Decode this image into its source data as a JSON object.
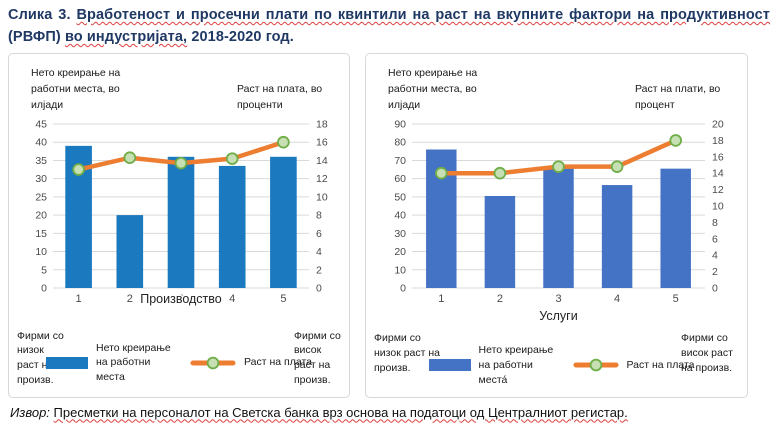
{
  "title": {
    "seg1": "Слика 3.",
    "seg2": "Вработеност и просечни плати по квинтили на раст на вкупните фактори на продуктивност",
    "seg3": "(РВФП)",
    "seg4": "во индустријата,",
    "seg5": "2018-2020 год."
  },
  "colors": {
    "title_navy": "#1F3864",
    "spellcheck_red": "#E04040",
    "grid": "#D9D9D9",
    "tick_text": "#4A4A4A",
    "bar_manufacturing": "#1B79BF",
    "bar_services": "#4472C4",
    "wage_line_orange": "#ED7D31",
    "marker_green_fill": "#C6E0B4",
    "marker_green_stroke": "#70AD47",
    "panel_border": "#D8D8D8"
  },
  "chart_data": [
    {
      "type": "bar+line",
      "categories": [
        "1",
        "2",
        "3",
        "4",
        "5"
      ],
      "series": [
        {
          "name": "Нето креирање на работни места",
          "type": "bar",
          "axis": "left",
          "values": [
            39,
            20,
            36,
            33.5,
            36
          ],
          "color": "#1B79BF"
        },
        {
          "name": "Раст на плата",
          "type": "line",
          "axis": "right",
          "values": [
            13,
            14.3,
            13.7,
            14.2,
            16
          ],
          "color": "#ED7D31",
          "marker_fill": "#C6E0B4",
          "marker_stroke": "#70AD47"
        }
      ],
      "y_left": {
        "label": "Нето креирање на работни места, во илјади",
        "min": 0,
        "max": 45,
        "step": 5
      },
      "y_right": {
        "label": "Раст на плата, во проценти",
        "min": 0,
        "max": 18,
        "step": 2
      },
      "x_title": "Производство",
      "x_title_inline": true,
      "annotation_left": "Фирми со низок раст на произв.",
      "annotation_right": "Фирми со висок раст на произв.",
      "grid": true,
      "legend_position": "bottom"
    },
    {
      "type": "bar+line",
      "categories": [
        "1",
        "2",
        "3",
        "4",
        "5"
      ],
      "series": [
        {
          "name": "Нето креирање на работни места́",
          "type": "bar",
          "axis": "left",
          "values": [
            76,
            50.5,
            65.5,
            56.5,
            65.5
          ],
          "color": "#4472C4"
        },
        {
          "name": "Раст на плата",
          "type": "line",
          "axis": "right",
          "values": [
            14,
            14,
            14.8,
            14.8,
            18
          ],
          "color": "#ED7D31",
          "marker_fill": "#C6E0B4",
          "marker_stroke": "#70AD47"
        }
      ],
      "y_left": {
        "label": "Нето креирање на работни места, во илјади",
        "min": 0,
        "max": 90,
        "step": 10
      },
      "y_right": {
        "label": "Раст на плати, во процент",
        "min": 0,
        "max": 20,
        "step": 2
      },
      "x_title": "Услуги",
      "x_title_inline": false,
      "annotation_left": "Фирми со низок раст на произв.",
      "annotation_right": "Фирми со висок раст на произв.",
      "grid": true,
      "legend_position": "bottom"
    }
  ],
  "source": {
    "label": "Извор:",
    "text": "Пресметки на персоналот на Светска банка врз основа на податоци од Централниот регистар."
  }
}
